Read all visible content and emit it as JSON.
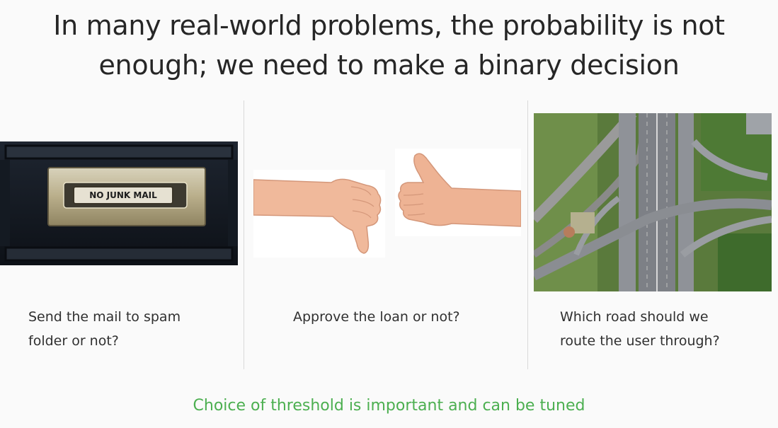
{
  "slide": {
    "title_line1": "In many real-world problems, the probability is not",
    "title_line2": "enough; we need to make a binary decision",
    "panels": [
      {
        "image_text": "NO JUNK MAIL",
        "caption_line1": "Send the mail to spam",
        "caption_line2": "folder or not?"
      },
      {
        "caption_line1": "Approve the loan or not?",
        "caption_line2": ""
      },
      {
        "caption_line1": "Which road should we",
        "caption_line2": "route the user through?"
      }
    ],
    "footer": "Choice of threshold is important and can be tuned",
    "colors": {
      "title": "#262626",
      "caption": "#303030",
      "footer": "#4caf50",
      "background": "#fafafa"
    }
  }
}
